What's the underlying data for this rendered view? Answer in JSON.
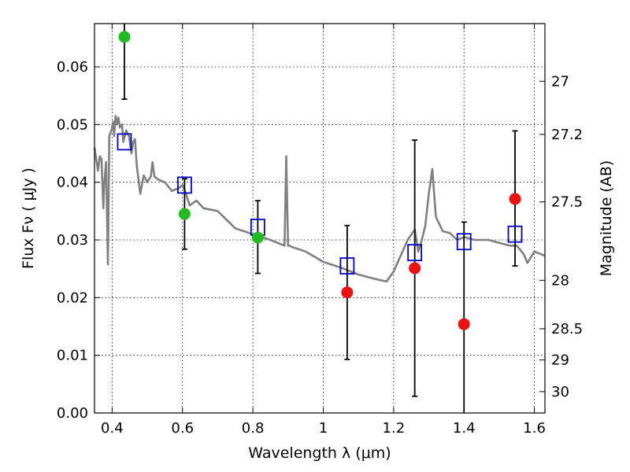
{
  "chart_data": {
    "type": "scatter",
    "xlabel": "Wavelength  λ (μm)",
    "ylabel": "Flux  Fν  ( μJy )",
    "ylabel_right": "Magnitude (AB)",
    "xlim": [
      0.35,
      1.63
    ],
    "ylim": [
      0.0,
      0.0675
    ],
    "x_ticks": [
      0.4,
      0.6,
      0.8,
      1.0,
      1.2,
      1.4,
      1.6
    ],
    "x_tick_labels": [
      "0.4",
      "0.6",
      "0.8",
      "1",
      "1.2",
      "1.4",
      "1.6"
    ],
    "y_ticks": [
      0.0,
      0.01,
      0.02,
      0.03,
      0.04,
      0.05,
      0.06
    ],
    "y_tick_labels": [
      "0.00",
      "0.01",
      "0.02",
      "0.03",
      "0.04",
      "0.05",
      "0.06"
    ],
    "right_ticks": [
      {
        "label": "27",
        "flux": 0.0575
      },
      {
        "label": "27.2",
        "flux": 0.0483
      },
      {
        "label": "27.5",
        "flux": 0.0366
      },
      {
        "label": "28",
        "flux": 0.023
      },
      {
        "label": "28.5",
        "flux": 0.0146
      },
      {
        "label": "29",
        "flux": 0.0092
      },
      {
        "label": "30",
        "flux": 0.0037
      }
    ],
    "grid": true,
    "series": [
      {
        "kind": "points",
        "color": "#22bb22",
        "points": [
          {
            "x": 0.435,
            "y": 0.0652,
            "err_low": 0.0108,
            "err_high": 0.003
          },
          {
            "x": 0.606,
            "y": 0.0345,
            "err_low": 0.0061,
            "err_high": 0.0061
          },
          {
            "x": 0.814,
            "y": 0.0304,
            "err_low": 0.0062,
            "err_high": 0.0064
          }
        ]
      },
      {
        "kind": "points",
        "color": "#ee1111",
        "points": [
          {
            "x": 1.068,
            "y": 0.0209,
            "err_low": 0.0116,
            "err_high": 0.0116
          },
          {
            "x": 1.26,
            "y": 0.0251,
            "err_low": 0.0222,
            "err_high": 0.0222
          },
          {
            "x": 1.4,
            "y": 0.0154,
            "err_low": 0.0154,
            "err_high": 0.0177
          },
          {
            "x": 1.545,
            "y": 0.0371,
            "err_low": 0.0116,
            "err_high": 0.0118
          }
        ]
      },
      {
        "kind": "model-squares",
        "color": "#0000cc",
        "points": [
          {
            "x": 0.435,
            "y": 0.047
          },
          {
            "x": 0.606,
            "y": 0.0395
          },
          {
            "x": 0.814,
            "y": 0.0322
          },
          {
            "x": 1.068,
            "y": 0.0255
          },
          {
            "x": 1.26,
            "y": 0.0278
          },
          {
            "x": 1.4,
            "y": 0.0297
          },
          {
            "x": 1.545,
            "y": 0.031
          }
        ]
      },
      {
        "kind": "line",
        "color": "#808080",
        "x": [
          0.35,
          0.36,
          0.365,
          0.37,
          0.375,
          0.378,
          0.383,
          0.388,
          0.392,
          0.398,
          0.403,
          0.406,
          0.41,
          0.414,
          0.418,
          0.422,
          0.428,
          0.432,
          0.44,
          0.448,
          0.455,
          0.46,
          0.465,
          0.47,
          0.48,
          0.49,
          0.5,
          0.51,
          0.515,
          0.52,
          0.53,
          0.55,
          0.57,
          0.59,
          0.6,
          0.61,
          0.62,
          0.64,
          0.66,
          0.7,
          0.75,
          0.8,
          0.85,
          0.89,
          0.895,
          0.9,
          0.905,
          0.91,
          0.95,
          1.0,
          1.05,
          1.1,
          1.15,
          1.18,
          1.2,
          1.24,
          1.26,
          1.27,
          1.28,
          1.29,
          1.3,
          1.31,
          1.32,
          1.34,
          1.36,
          1.38,
          1.4,
          1.43,
          1.47,
          1.5,
          1.53,
          1.55,
          1.57,
          1.58,
          1.6,
          1.62,
          1.63
        ],
        "y": [
          0.046,
          0.042,
          0.0445,
          0.044,
          0.0355,
          0.04,
          0.0435,
          0.0258,
          0.048,
          0.049,
          0.0505,
          0.048,
          0.0515,
          0.05,
          0.0512,
          0.0495,
          0.05,
          0.047,
          0.049,
          0.048,
          0.045,
          0.047,
          0.0475,
          0.043,
          0.038,
          0.0412,
          0.04,
          0.041,
          0.0435,
          0.041,
          0.0405,
          0.04,
          0.0385,
          0.039,
          0.0395,
          0.038,
          0.036,
          0.0368,
          0.0355,
          0.035,
          0.032,
          0.031,
          0.03,
          0.029,
          0.0445,
          0.029,
          0.029,
          0.0288,
          0.028,
          0.0262,
          0.0252,
          0.024,
          0.0232,
          0.0228,
          0.0245,
          0.03,
          0.0318,
          0.028,
          0.03,
          0.0325,
          0.038,
          0.0423,
          0.034,
          0.0315,
          0.0312,
          0.03,
          0.0305,
          0.03,
          0.03,
          0.0295,
          0.029,
          0.029,
          0.0275,
          0.026,
          0.028,
          0.0275,
          0.0272
        ]
      }
    ]
  }
}
